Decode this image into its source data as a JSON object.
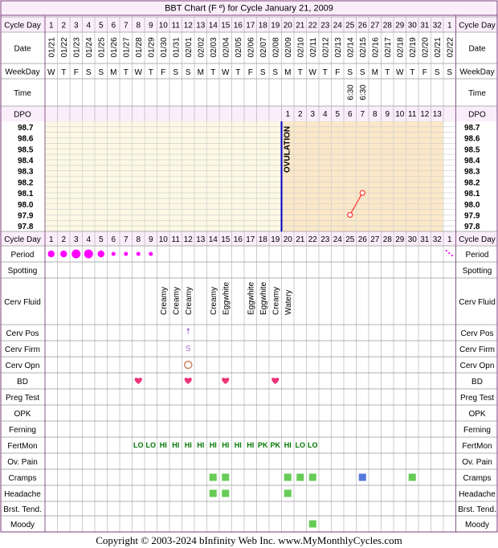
{
  "title": "BBT Chart (F º) for Cycle January 21, 2009",
  "footer": "Copyright © 2003-2024 bInfinity Web Inc.     www.MyMonthlyCycles.com",
  "row_labels": {
    "cycle_day": "Cycle Day",
    "date": "Date",
    "weekday": "WeekDay",
    "time": "Time",
    "dpo": "DPO",
    "period": "Period",
    "spotting": "Spotting",
    "cerv_fluid": "Cerv Fluid",
    "cerv_pos": "Cerv Pos",
    "cerv_firm": "Cerv Firm",
    "cerv_opn": "Cerv Opn",
    "bd": "BD",
    "preg_test": "Preg Test",
    "opk": "OPK",
    "ferning": "Ferning",
    "fertmon": "FertMon",
    "ov_pain": "Ov. Pain",
    "cramps": "Cramps",
    "headache": "Headache",
    "brst_tend": "Brst. Tend.",
    "moody": "Moody"
  },
  "ovulation_label": "OVULATION",
  "colors": {
    "border": "#7a3d7a",
    "header_fill": "#fbeefb",
    "grid": "#cccccc",
    "pre_fill": "#fbf8e4",
    "post_fill": "#fbe8c8",
    "ovulation_line": "#0000cc",
    "temp_line": "#ff3333",
    "period_dot": "#ff00ff",
    "heart": "#ee3377",
    "fertmon_text": "#007700",
    "symptom_green": "#66cc55",
    "symptom_blue": "#5577dd"
  },
  "chart_data": {
    "type": "line",
    "title": "BBT Chart (F º) for Cycle January 21, 2009",
    "cycle_days": [
      "1",
      "2",
      "3",
      "4",
      "5",
      "6",
      "7",
      "8",
      "9",
      "10",
      "11",
      "12",
      "13",
      "14",
      "15",
      "16",
      "17",
      "18",
      "19",
      "20",
      "21",
      "22",
      "23",
      "24",
      "25",
      "26",
      "27",
      "28",
      "29",
      "30",
      "31",
      "32",
      "1"
    ],
    "dates": [
      "01/21",
      "01/22",
      "01/23",
      "01/24",
      "01/25",
      "01/26",
      "01/27",
      "01/28",
      "01/29",
      "01/30",
      "01/31",
      "02/01",
      "02/02",
      "02/03",
      "02/04",
      "02/05",
      "02/06",
      "02/07",
      "02/08",
      "02/09",
      "02/10",
      "02/11",
      "02/12",
      "02/13",
      "02/14",
      "02/15",
      "02/16",
      "02/17",
      "02/18",
      "02/19",
      "02/20",
      "02/21",
      "02/22"
    ],
    "weekdays": [
      "W",
      "T",
      "F",
      "S",
      "S",
      "M",
      "T",
      "W",
      "T",
      "F",
      "S",
      "S",
      "M",
      "T",
      "W",
      "T",
      "F",
      "S",
      "S",
      "M",
      "T",
      "W",
      "T",
      "F",
      "S",
      "S",
      "M",
      "T",
      "W",
      "T",
      "F",
      "S",
      "S"
    ],
    "times": [
      "",
      "",
      "",
      "",
      "",
      "",
      "",
      "",
      "",
      "",
      "",
      "",
      "",
      "",
      "",
      "",
      "",
      "",
      "",
      "",
      "",
      "",
      "",
      "",
      "6:30",
      "6:30",
      "",
      "",
      "",
      "",
      "",
      "",
      ""
    ],
    "dpo": [
      "",
      "",
      "",
      "",
      "",
      "",
      "",
      "",
      "",
      "",
      "",
      "",
      "",
      "",
      "",
      "",
      "",
      "",
      "",
      "1",
      "2",
      "3",
      "4",
      "5",
      "6",
      "7",
      "8",
      "9",
      "10",
      "11",
      "12",
      "13",
      ""
    ],
    "temp_ticks": [
      "98.7",
      "98.6",
      "98.5",
      "98.4",
      "98.3",
      "98.2",
      "98.1",
      "98.0",
      "97.9",
      "97.8"
    ],
    "ylim": [
      97.8,
      98.7
    ],
    "ovulation_after_day": 19,
    "coverline_shading_from_day": 20,
    "coverline_shading_to_day": 32,
    "series": [
      {
        "name": "",
        "x": [
          25,
          26
        ],
        "values": [
          97.9,
          98.1
        ]
      }
    ],
    "period": [
      3,
      3,
      4,
      4,
      3,
      2,
      2,
      2,
      2,
      0,
      0,
      0,
      0,
      0,
      0,
      0,
      0,
      0,
      0,
      0,
      0,
      0,
      0,
      0,
      0,
      0,
      0,
      0,
      0,
      0,
      0,
      0,
      1
    ],
    "cerv_fluid": [
      "",
      "",
      "",
      "",
      "",
      "",
      "",
      "",
      "",
      "Creamy",
      "Creamy",
      "Creamy",
      "",
      "Creamy",
      "Eggwhite",
      "",
      "Eggwhite",
      "Eggwhite",
      "Creamy",
      "Watery",
      "",
      "",
      "",
      "",
      "",
      "",
      "",
      "",
      "",
      "",
      "",
      "",
      ""
    ],
    "cerv_pos_day": 12,
    "cerv_firm": {
      "day": 12,
      "text": "S"
    },
    "cerv_opn_day": 12,
    "bd_days": [
      8,
      12,
      15,
      19
    ],
    "fertmon": [
      "",
      "",
      "",
      "",
      "",
      "",
      "",
      "LO",
      "LO",
      "HI",
      "HI",
      "HI",
      "HI",
      "HI",
      "HI",
      "HI",
      "HI",
      "PK",
      "PK",
      "HI",
      "LO",
      "LO",
      "",
      "",
      "",
      "",
      "",
      "",
      "",
      "",
      "",
      "",
      ""
    ],
    "cramps": [
      {
        "day": 14,
        "color": "green"
      },
      {
        "day": 15,
        "color": "green"
      },
      {
        "day": 20,
        "color": "green"
      },
      {
        "day": 21,
        "color": "green"
      },
      {
        "day": 22,
        "color": "green"
      },
      {
        "day": 26,
        "color": "blue"
      },
      {
        "day": 30,
        "color": "green"
      }
    ],
    "headache": [
      14,
      15,
      20
    ],
    "moody": [
      22
    ]
  }
}
